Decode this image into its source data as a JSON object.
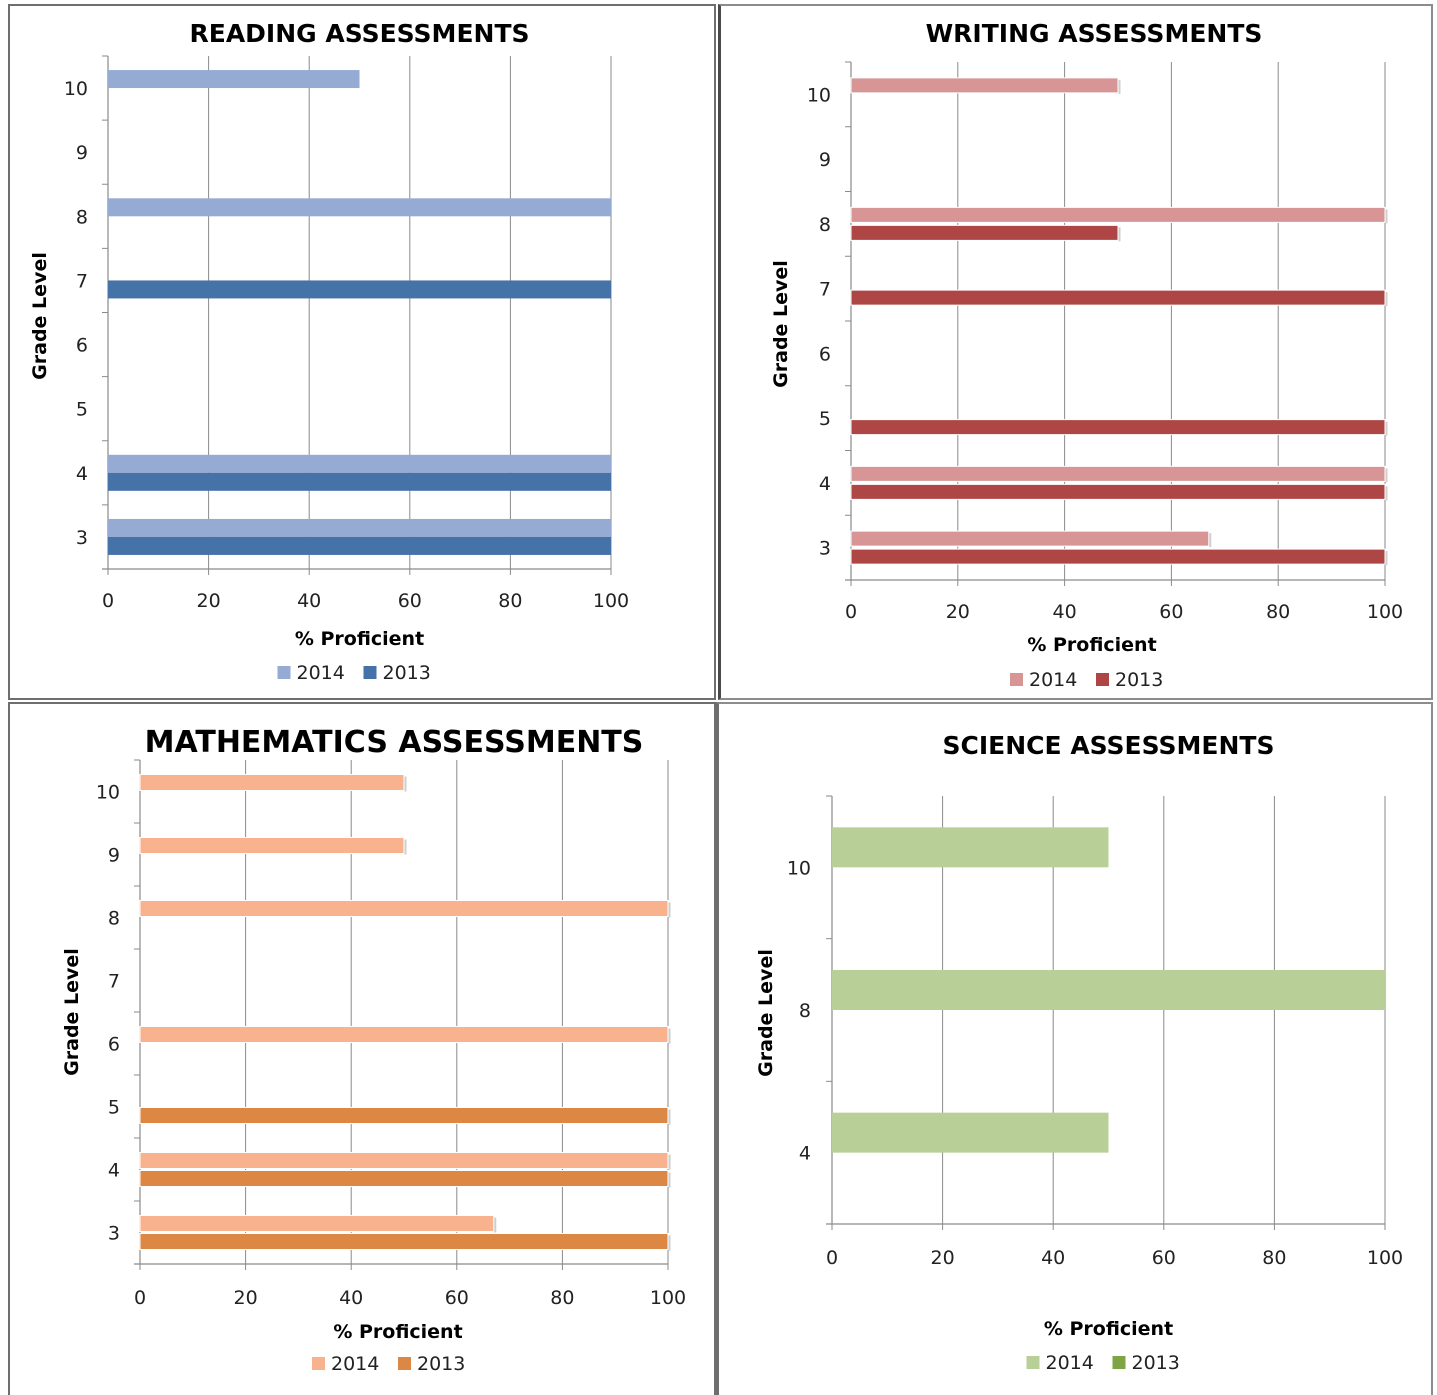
{
  "chart_data": [
    {
      "type": "bar",
      "orientation": "horizontal",
      "title": "READING ASSESSMENTS",
      "xlabel": "% Proficient",
      "ylabel": "Grade Level",
      "categories": [
        "3",
        "4",
        "5",
        "6",
        "7",
        "8",
        "9",
        "10"
      ],
      "xlim": [
        0,
        100
      ],
      "xticks": [
        "0",
        "20",
        "40",
        "60",
        "80",
        "100"
      ],
      "grid": "vertical",
      "legend_position": "bottom",
      "series": [
        {
          "name": "2014",
          "color": "#95abd3",
          "values": [
            100,
            100,
            null,
            null,
            null,
            100,
            null,
            50
          ]
        },
        {
          "name": "2013",
          "color": "#4573a7",
          "values": [
            100,
            100,
            null,
            null,
            100,
            null,
            null,
            null
          ]
        }
      ]
    },
    {
      "type": "bar",
      "orientation": "horizontal",
      "title": "WRITING ASSESSMENTS",
      "xlabel": "% Proficient",
      "ylabel": "Grade Level",
      "categories": [
        "3",
        "4",
        "5",
        "6",
        "7",
        "8",
        "9",
        "10"
      ],
      "xlim": [
        0,
        100
      ],
      "xticks": [
        "0",
        "20",
        "40",
        "60",
        "80",
        "100"
      ],
      "grid": "vertical",
      "legend_position": "bottom",
      "series": [
        {
          "name": "2014",
          "color": "#d79595",
          "values": [
            67,
            100,
            null,
            null,
            null,
            100,
            null,
            50
          ]
        },
        {
          "name": "2013",
          "color": "#ae4646",
          "values": [
            100,
            100,
            100,
            null,
            100,
            50,
            null,
            null
          ]
        }
      ]
    },
    {
      "type": "bar",
      "orientation": "horizontal",
      "title": "MATHEMATICS  ASSESSMENTS",
      "xlabel": "% Proficient",
      "ylabel": "Grade Level",
      "categories": [
        "3",
        "4",
        "5",
        "6",
        "7",
        "8",
        "9",
        "10"
      ],
      "xlim": [
        0,
        100
      ],
      "xticks": [
        "0",
        "20",
        "40",
        "60",
        "80",
        "100"
      ],
      "grid": "vertical",
      "legend_position": "bottom",
      "series": [
        {
          "name": "2014",
          "color": "#f8b28e",
          "values": [
            67,
            100,
            null,
            100,
            null,
            100,
            50,
            50
          ]
        },
        {
          "name": "2013",
          "color": "#dd8744",
          "values": [
            100,
            100,
            100,
            null,
            null,
            null,
            null,
            null
          ]
        }
      ]
    },
    {
      "type": "bar",
      "orientation": "horizontal",
      "title": "SCIENCE ASSESSMENTS",
      "xlabel": "% Proficient",
      "ylabel": "Grade Level",
      "categories": [
        "4",
        "8",
        "10"
      ],
      "xlim": [
        0,
        100
      ],
      "xticks": [
        "0",
        "20",
        "40",
        "60",
        "80",
        "100"
      ],
      "grid": "vertical",
      "legend_position": "bottom",
      "series": [
        {
          "name": "2014",
          "color": "#b8d098",
          "values": [
            50,
            100,
            50
          ]
        },
        {
          "name": "2013",
          "color": "#7fa446",
          "values": [
            null,
            null,
            null
          ]
        }
      ]
    }
  ]
}
